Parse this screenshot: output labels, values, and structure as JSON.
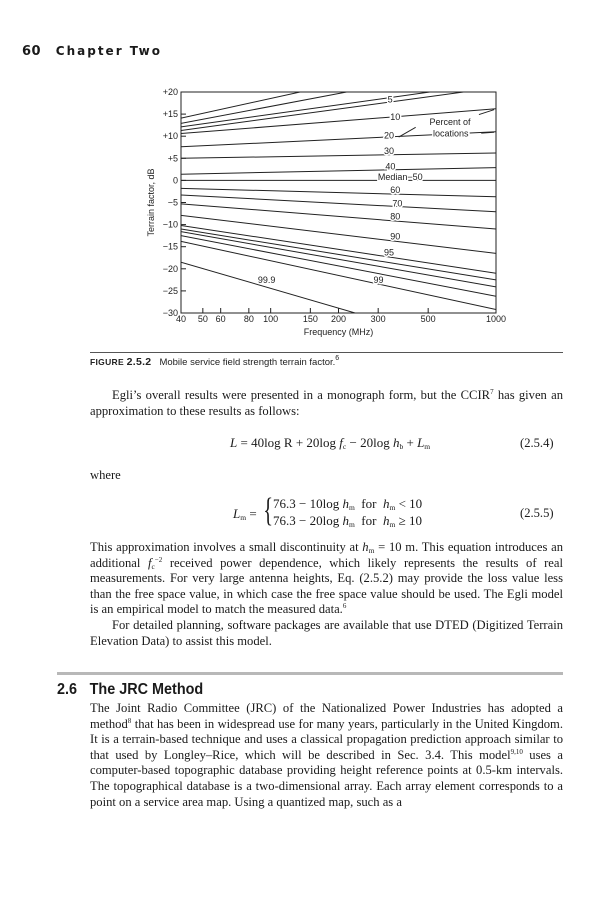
{
  "header": {
    "page_number": "60",
    "chapter": "Chapter Two"
  },
  "chart_data": {
    "type": "line",
    "title": "",
    "xlabel": "Frequency (MHz)",
    "ylabel": "Terrain factor, dB",
    "xscale": "log",
    "xlim": [
      40,
      1000
    ],
    "ylim": [
      -30,
      20
    ],
    "grid": false,
    "xticks": [
      "40",
      "50",
      "60",
      "80",
      "100",
      "150",
      "200",
      "300",
      "500",
      "1000"
    ],
    "xtick_values": [
      40,
      50,
      60,
      80,
      100,
      150,
      200,
      300,
      500,
      1000
    ],
    "yticks": [
      "+20",
      "+15",
      "+10",
      "+5",
      "0",
      "−5",
      "−10",
      "−15",
      "−20",
      "−25",
      "−30"
    ],
    "ytick_values": [
      20,
      15,
      10,
      5,
      0,
      -5,
      -10,
      -15,
      -20,
      -25,
      -30
    ],
    "series": [
      {
        "name": "",
        "x": [
          40,
          1000
        ],
        "y": [
          14.1,
          29.7
        ]
      },
      {
        "name": "",
        "x": [
          40,
          1000
        ],
        "y": [
          12.9,
          26.4
        ]
      },
      {
        "name": "",
        "x": [
          40,
          1000
        ],
        "y": [
          12.1,
          22.1
        ]
      },
      {
        "name": "5",
        "x": [
          40,
          1000
        ],
        "y": [
          11.3,
          21.0
        ]
      },
      {
        "name": "10",
        "x": [
          40,
          1000
        ],
        "y": [
          10.6,
          16.2
        ]
      },
      {
        "name": "20",
        "x": [
          40,
          1000
        ],
        "y": [
          7.6,
          11.0
        ]
      },
      {
        "name": "30",
        "x": [
          40,
          1000
        ],
        "y": [
          5.0,
          6.2
        ]
      },
      {
        "name": "40",
        "x": [
          40,
          1000
        ],
        "y": [
          1.4,
          2.9
        ]
      },
      {
        "name": "Median−50",
        "x": [
          40,
          1000
        ],
        "y": [
          0,
          0
        ]
      },
      {
        "name": "60",
        "x": [
          40,
          1000
        ],
        "y": [
          -1.8,
          -3.7
        ]
      },
      {
        "name": "70",
        "x": [
          40,
          1000
        ],
        "y": [
          -3.3,
          -7.1
        ]
      },
      {
        "name": "80",
        "x": [
          40,
          1000
        ],
        "y": [
          -5.3,
          -11.0
        ]
      },
      {
        "name": "90",
        "x": [
          40,
          1000
        ],
        "y": [
          -7.9,
          -16.5
        ]
      },
      {
        "name": "95",
        "x": [
          40,
          1000
        ],
        "y": [
          -10.2,
          -21.0
        ]
      },
      {
        "name": "",
        "x": [
          40,
          1000
        ],
        "y": [
          -11.0,
          -22.5
        ]
      },
      {
        "name": "",
        "x": [
          40,
          1000
        ],
        "y": [
          -11.6,
          -24.1
        ]
      },
      {
        "name": "",
        "x": [
          40,
          1000
        ],
        "y": [
          -12.5,
          -26.2
        ]
      },
      {
        "name": "99",
        "x": [
          40,
          1000
        ],
        "y": [
          -13.8,
          -29.2
        ]
      },
      {
        "name": "99.9",
        "x": [
          40,
          1000
        ],
        "y": [
          -18.5,
          -39.3
        ]
      }
    ],
    "annotation": [
      "Percent of",
      "locations"
    ],
    "line_color": "#222222"
  },
  "figure": {
    "label": "Figure",
    "number": "2.5.2",
    "caption": "Mobile service field strength terrain factor.",
    "caption_ref": "6"
  },
  "para1": {
    "a": "Egli’s overall results were presented in a monograph form, but the CCIR",
    "sup": "7",
    "b": " has given an approximation to these results as follows:"
  },
  "eq1": {
    "lhs": "L",
    "eq": " = 40log R + 20log ",
    "f": "f",
    "fsub": "c",
    "mid": " − 20log ",
    "h": "h",
    "hsub": "b",
    "plus": " + ",
    "L": "L",
    "Lsub": "m",
    "number": "(2.5.4)"
  },
  "where": "where",
  "eq2": {
    "L": "L",
    "Lsub": "m",
    "eq": " =",
    "brace": "{",
    "row1": {
      "a": "76.3 − 10log ",
      "h": "h",
      "hsub": "m",
      "for": "  for  ",
      "h2": "h",
      "h2sub": "m",
      "cond": " < 10"
    },
    "row2": {
      "a": "76.3 − 20log ",
      "h": "h",
      "hsub": "m",
      "for": "  for  ",
      "h2": "h",
      "h2sub": "m",
      "cond": " ≥ 10"
    },
    "number": "(2.5.5)"
  },
  "para2": {
    "a": "This approximation involves a small discontinuity at ",
    "h": "h",
    "hsub": "m",
    "b": " = 10 m. This equation introduces an additional ",
    "f": "f",
    "fsub": "c",
    "fsup": "−2",
    "c": " received power dependence, which likely represents the results of real measurements. For very large antenna heights, Eq. (2.5.2) may provide the loss value less than the free space value, in which case the free space value should be used. The Egli model is an empirical model to match the measured data.",
    "sup": "6"
  },
  "para3": "For detailed planning, software packages are available that use DTED (Digitized Terrain Elevation Data) to assist this model.",
  "section": {
    "number": "2.6",
    "title": "The JRC Method"
  },
  "para4": {
    "a": "The Joint Radio Committee (JRC) of the Nationalized Power Industries has adopted a method",
    "sup1": "8",
    "b": " that has been in widespread use for many years, particularly in the United Kingdom. It is a terrain-based technique and uses a classical propagation prediction approach similar to that used by Longley–Rice, which will be described in Sec. 3.4. This model",
    "sup2": "9,10",
    "c": " uses a computer-based topographic database providing height reference points at 0.5-km intervals. The topographical database is a two-dimensional array. Each array element corresponds to a point on a service area map. Using a quantized map, such as a"
  }
}
